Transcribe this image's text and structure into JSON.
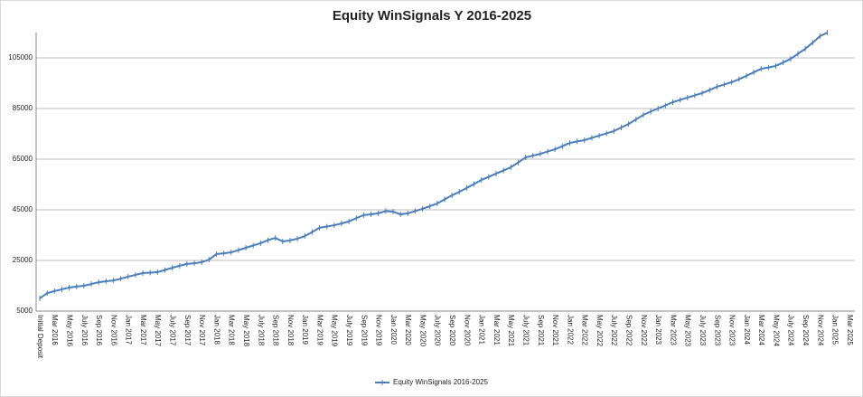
{
  "chart_data": {
    "type": "line",
    "title": "Equity WinSignals Y 2016-2025",
    "categories": [
      "Initial Deposit",
      null,
      "Mar 2016",
      null,
      "May 2016",
      null,
      "July 2016",
      null,
      "Sep 2016",
      null,
      "Nov 2016",
      null,
      "Jan 2017",
      null,
      "Mar 2017",
      null,
      "May 2017",
      null,
      "July 2017",
      null,
      "Sep 2017",
      null,
      "Nov 2017",
      null,
      "Jan 2018",
      null,
      "Mar 2018",
      null,
      "May 2018",
      null,
      "July 2018",
      null,
      "Sep 2018",
      null,
      "Nov 2018",
      null,
      "Jan 2019",
      null,
      "Mar 2019",
      null,
      "May 2019",
      null,
      "July 2019",
      null,
      "Sep 2019",
      null,
      "Nov 2019",
      null,
      "Jan 2020",
      null,
      "Mar 2020",
      null,
      "May 2020",
      null,
      "July 2020",
      null,
      "Sep 2020",
      null,
      "Nov 2020",
      null,
      "Jan 2021",
      null,
      "Mar 2021",
      null,
      "May 2021",
      null,
      "July 2021",
      null,
      "Sep 2021",
      null,
      "Nov 2021",
      null,
      "Jan 2022",
      null,
      "Mar 2022",
      null,
      "May 2022",
      null,
      "July 2022",
      null,
      "Sep 2022",
      null,
      "Nov 2022",
      null,
      "Jan 2023",
      null,
      "Mar 2023",
      null,
      "May 2023",
      null,
      "July 2023",
      null,
      "Sep 2023",
      null,
      "Nov 2023",
      null,
      "Jan 2024",
      null,
      "Mar 2024",
      null,
      "May 2024",
      null,
      "July 2024",
      null,
      "Sep 2024",
      null,
      "Nov 2024",
      null,
      "Jan 2025",
      null,
      "Mar 2025"
    ],
    "series": [
      {
        "name": "Equity WinSignals 2016-2025",
        "color": "#4a7ebb",
        "values": [
          10000,
          12100,
          12900,
          13600,
          14300,
          14700,
          15000,
          15700,
          16400,
          16800,
          17100,
          17800,
          18600,
          19300,
          20000,
          20200,
          20400,
          21200,
          22100,
          22900,
          23600,
          23900,
          24300,
          25300,
          27500,
          27800,
          28200,
          29100,
          30000,
          30900,
          31800,
          33000,
          33900,
          32500,
          32900,
          33600,
          34600,
          36200,
          37900,
          38400,
          38900,
          39600,
          40400,
          41700,
          42900,
          43200,
          43600,
          44500,
          44300,
          43200,
          43600,
          44500,
          45400,
          46400,
          47500,
          49100,
          50700,
          52100,
          53600,
          55200,
          56800,
          58000,
          59300,
          60500,
          61800,
          63700,
          65700,
          66400,
          67100,
          68000,
          68900,
          70100,
          71400,
          72000,
          72500,
          73400,
          74300,
          75200,
          76100,
          77500,
          78900,
          80700,
          82500,
          83800,
          85000,
          86200,
          87500,
          88400,
          89300,
          90200,
          91100,
          92300,
          93600,
          94500,
          95400,
          96600,
          97900,
          99300,
          100700,
          101200,
          101800,
          103200,
          104600,
          106600,
          108600,
          111000,
          113600,
          115000,
          null,
          null,
          null
        ]
      }
    ],
    "ylim": [
      5000,
      115000
    ],
    "yticks": [
      5000,
      25000,
      45000,
      65000,
      85000,
      105000
    ],
    "grid": true,
    "legend": "bottom"
  }
}
